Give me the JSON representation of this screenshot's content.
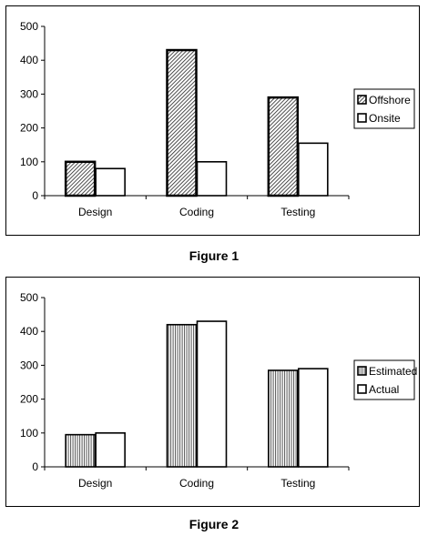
{
  "charts": [
    {
      "caption": "Figure 1",
      "chart_data": {
        "type": "bar",
        "categories": [
          "Design",
          "Coding",
          "Testing"
        ],
        "series": [
          {
            "name": "Offshore",
            "values": [
              100,
              430,
              290
            ],
            "pattern": "diagonal"
          },
          {
            "name": "Onsite",
            "values": [
              80,
              100,
              155
            ],
            "pattern": "solid"
          }
        ],
        "yticks": [
          0,
          100,
          200,
          300,
          400,
          500
        ],
        "ylim": [
          0,
          500
        ],
        "legend": "right",
        "grid": false
      }
    },
    {
      "caption": "Figure 2",
      "chart_data": {
        "type": "bar",
        "categories": [
          "Design",
          "Coding",
          "Testing"
        ],
        "series": [
          {
            "name": "Estimated",
            "values": [
              95,
              420,
              285
            ],
            "pattern": "vertical"
          },
          {
            "name": "Actual",
            "values": [
              100,
              430,
              290
            ],
            "pattern": "solid"
          }
        ],
        "yticks": [
          0,
          100,
          200,
          300,
          400,
          500
        ],
        "ylim": [
          0,
          500
        ],
        "legend": "right",
        "grid": false
      }
    }
  ]
}
